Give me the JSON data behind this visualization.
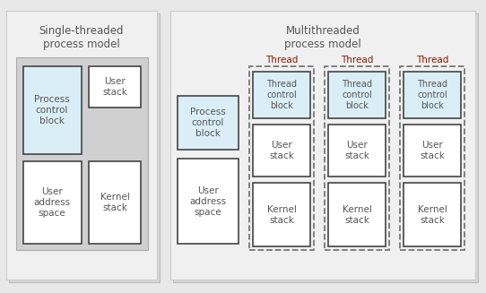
{
  "bg_color": "#e8e8e8",
  "white": "#ffffff",
  "light_blue": "#daeef8",
  "panel_bg": "#f0f0f0",
  "card_bg": "#f5f5f5",
  "inner_gray": "#d0d0d0",
  "text_color": "#555555",
  "red_text": "#8b1a00",
  "title_color": "#555555",
  "border_color": "#888888",
  "dark_border": "#444444",
  "single_title": "Single-threaded\nprocess model",
  "multi_title": "Multithreaded\nprocess model",
  "pcb_label": "Process\ncontrol\nblock",
  "user_stack_label": "User\nstack",
  "user_addr_label": "User\naddress\nspace",
  "kernel_stack_label": "Kernel\nstack",
  "thread_label": "Thread",
  "thread_control_label": "Thread\ncontrol\nblock"
}
